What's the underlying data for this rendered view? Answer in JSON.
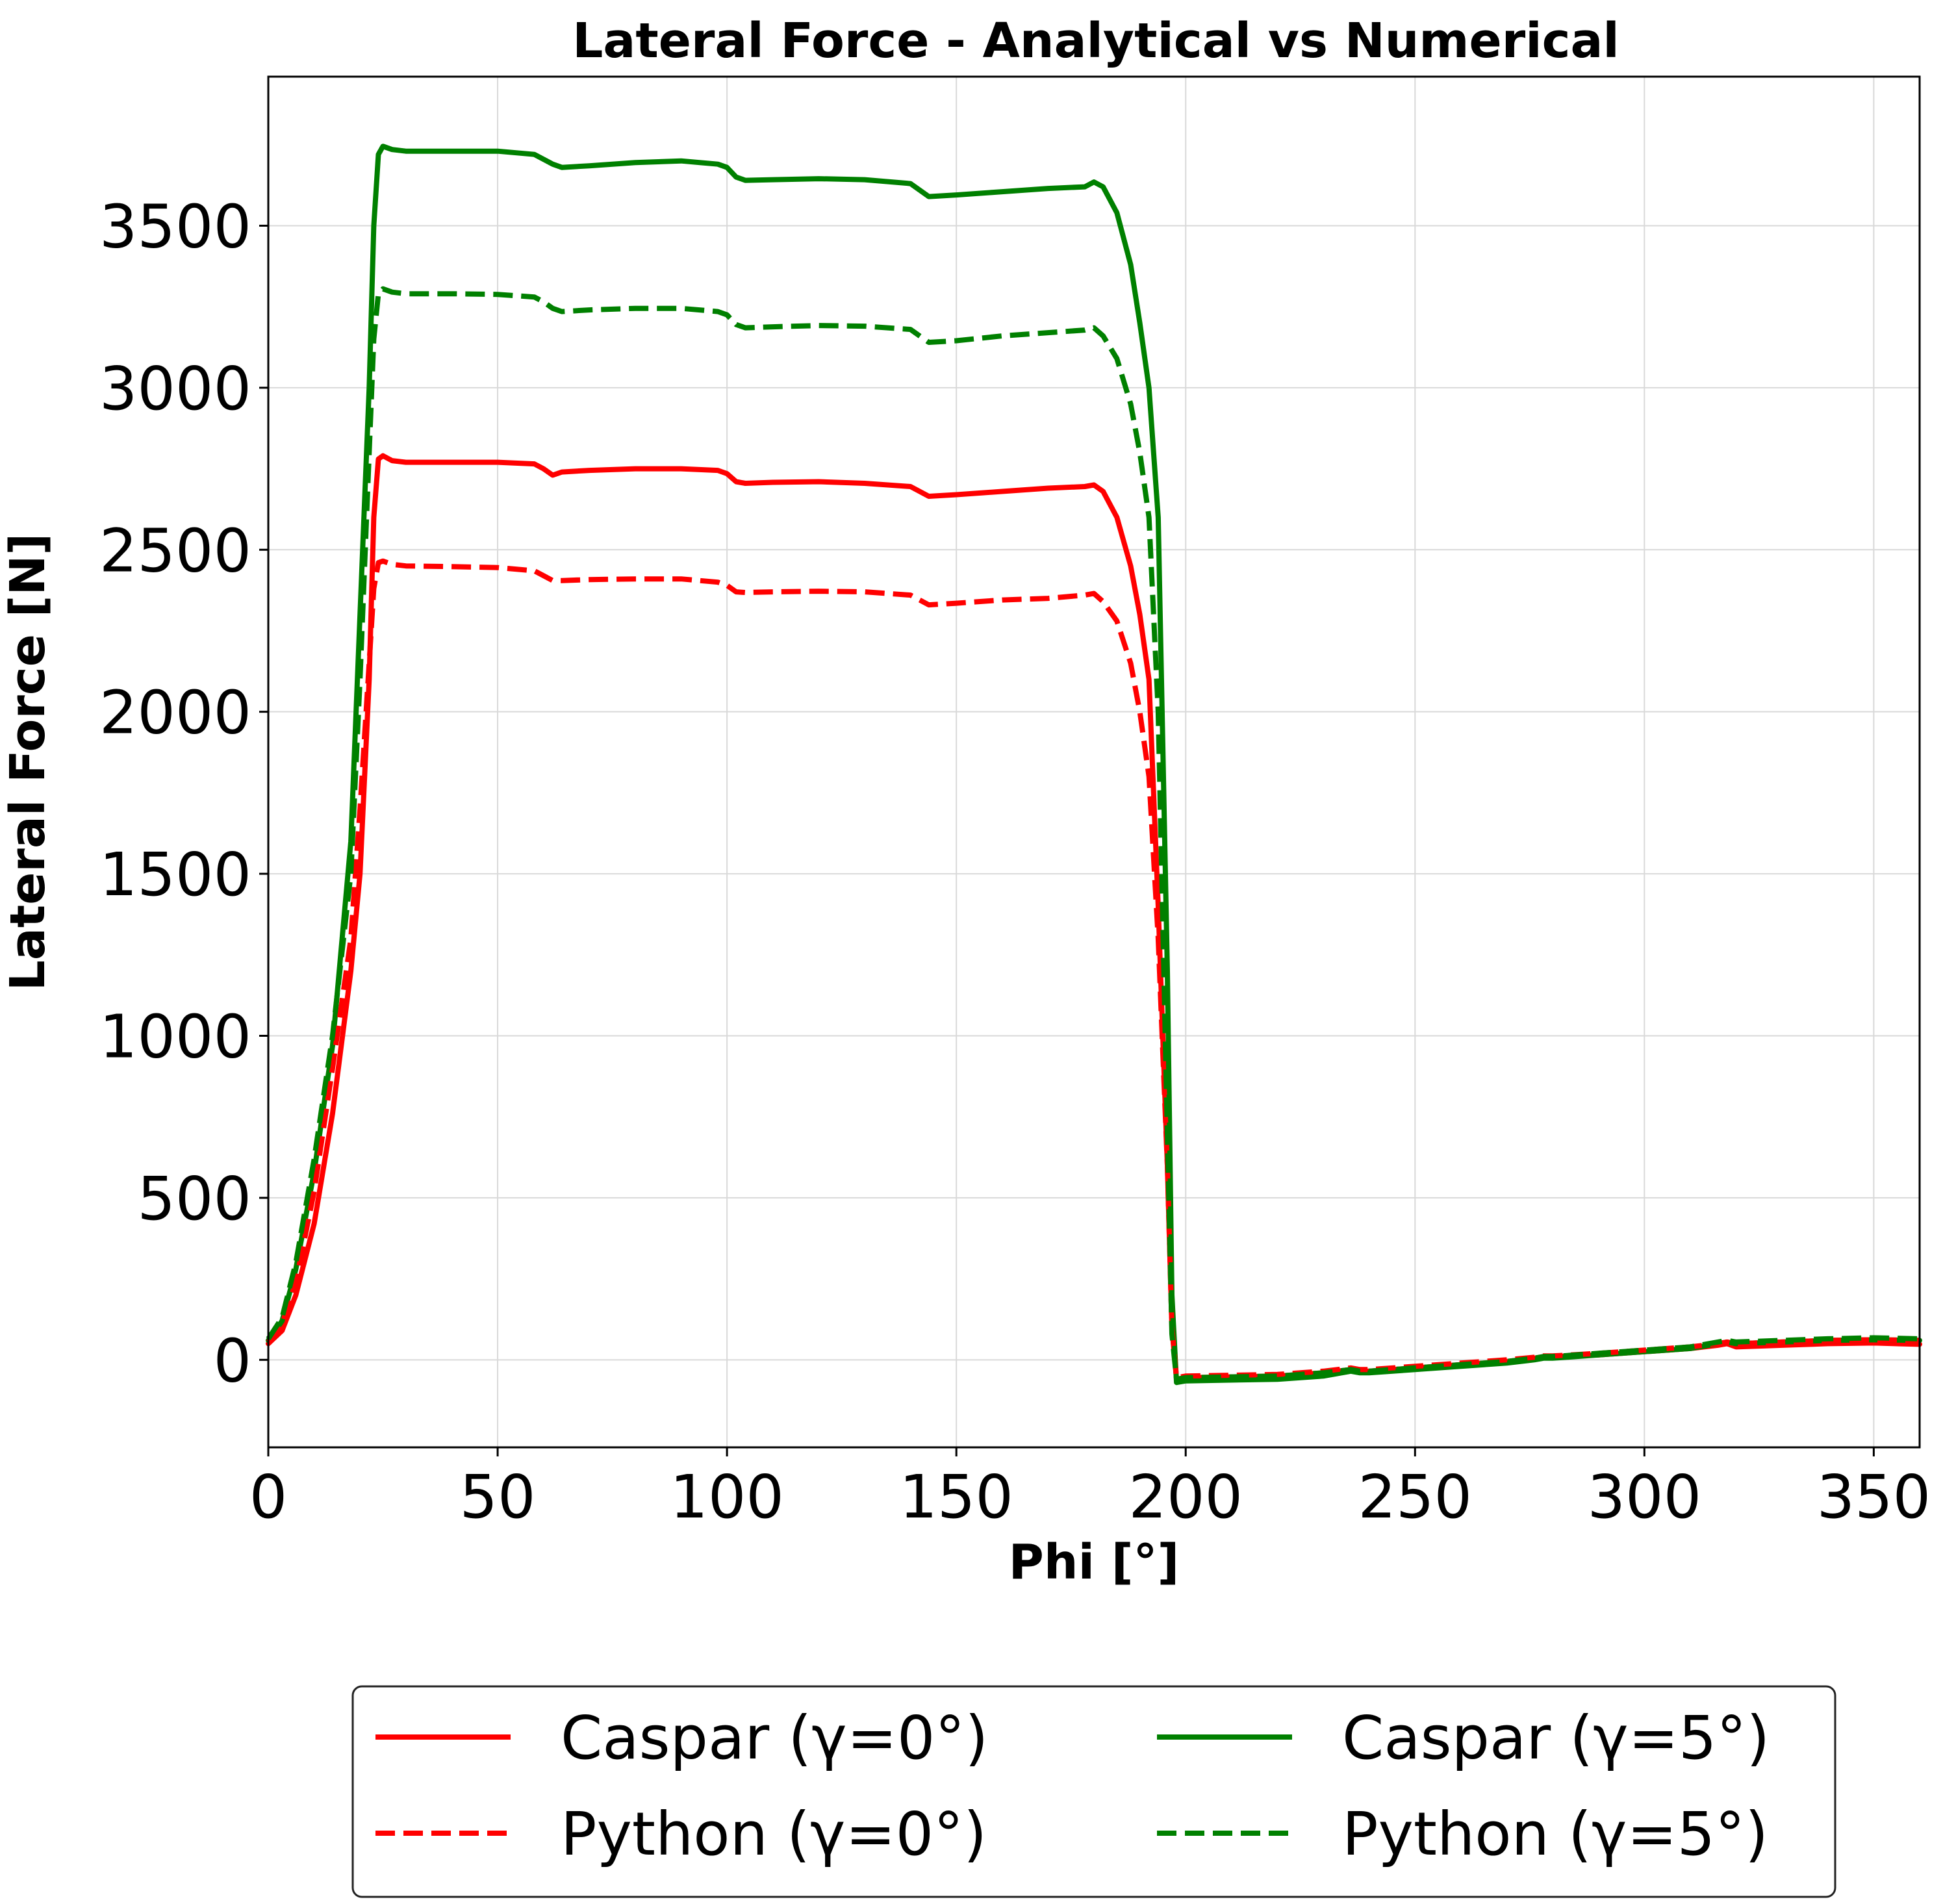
{
  "chart_data": {
    "type": "line",
    "title": "Lateral Force - Analytical vs Numerical",
    "xlabel": "Phi [°]",
    "ylabel": "Lateral Force [N]",
    "xlim": [
      0,
      360
    ],
    "ylim": [
      -270,
      3960
    ],
    "xticks": [
      0,
      50,
      100,
      150,
      200,
      250,
      300,
      350
    ],
    "yticks": [
      0,
      500,
      1000,
      1500,
      2000,
      2500,
      3000,
      3500
    ],
    "grid": true,
    "legend": {
      "placement": "below-plot",
      "columns": 2
    },
    "series": [
      {
        "name": "Caspar (γ=0°)",
        "color": "#ff0000",
        "dash": "solid",
        "x": [
          0,
          3,
          6,
          10,
          14,
          18,
          20,
          22,
          23,
          24,
          25,
          27,
          30,
          40,
          50,
          58,
          60,
          62,
          64,
          70,
          80,
          90,
          98,
          100,
          102,
          104,
          110,
          120,
          130,
          140,
          142,
          144,
          150,
          160,
          170,
          178,
          180,
          182,
          185,
          188,
          190,
          192,
          194,
          196,
          197,
          198,
          200,
          220,
          230,
          236,
          238,
          240,
          250,
          260,
          270,
          276,
          278,
          280,
          290,
          300,
          310,
          316,
          318,
          320,
          330,
          340,
          350,
          360
        ],
        "y": [
          50,
          90,
          200,
          420,
          760,
          1200,
          1500,
          2100,
          2600,
          2780,
          2790,
          2775,
          2770,
          2770,
          2770,
          2765,
          2750,
          2730,
          2740,
          2745,
          2750,
          2750,
          2745,
          2735,
          2710,
          2705,
          2708,
          2710,
          2705,
          2695,
          2680,
          2665,
          2670,
          2680,
          2690,
          2695,
          2700,
          2680,
          2600,
          2450,
          2300,
          2100,
          1400,
          600,
          100,
          -60,
          -55,
          -50,
          -40,
          -30,
          -35,
          -35,
          -25,
          -15,
          -5,
          5,
          10,
          10,
          15,
          25,
          35,
          45,
          50,
          40,
          45,
          50,
          52,
          48
        ]
      },
      {
        "name": "Python (γ=0°)",
        "color": "#ff0000",
        "dash": "dashed",
        "x": [
          0,
          3,
          6,
          10,
          14,
          18,
          20,
          22,
          23,
          24,
          25,
          27,
          30,
          40,
          50,
          58,
          60,
          62,
          64,
          70,
          80,
          90,
          98,
          100,
          102,
          104,
          110,
          120,
          130,
          140,
          142,
          144,
          150,
          160,
          170,
          178,
          180,
          182,
          185,
          188,
          190,
          192,
          194,
          196,
          197,
          198,
          200,
          220,
          230,
          236,
          238,
          240,
          250,
          260,
          270,
          276,
          278,
          280,
          290,
          300,
          310,
          316,
          318,
          320,
          330,
          340,
          350,
          360
        ],
        "y": [
          55,
          110,
          240,
          520,
          900,
          1300,
          1700,
          2150,
          2380,
          2460,
          2465,
          2455,
          2450,
          2448,
          2445,
          2435,
          2420,
          2405,
          2405,
          2408,
          2410,
          2410,
          2400,
          2390,
          2370,
          2368,
          2370,
          2372,
          2370,
          2360,
          2345,
          2330,
          2335,
          2345,
          2350,
          2360,
          2365,
          2340,
          2280,
          2150,
          2000,
          1800,
          1300,
          600,
          100,
          -55,
          -50,
          -45,
          -35,
          -25,
          -30,
          -30,
          -20,
          -10,
          0,
          8,
          12,
          12,
          20,
          30,
          40,
          50,
          55,
          50,
          55,
          60,
          62,
          60
        ]
      },
      {
        "name": "Caspar (γ=5°)",
        "color": "#008000",
        "dash": "solid",
        "x": [
          0,
          3,
          6,
          10,
          14,
          18,
          20,
          22,
          23,
          24,
          25,
          27,
          30,
          40,
          50,
          58,
          60,
          62,
          64,
          70,
          80,
          90,
          98,
          100,
          102,
          104,
          110,
          120,
          130,
          140,
          142,
          144,
          150,
          160,
          170,
          178,
          180,
          182,
          185,
          188,
          190,
          192,
          194,
          196,
          197,
          198,
          200,
          220,
          230,
          236,
          238,
          240,
          250,
          260,
          270,
          276,
          278,
          280,
          290,
          300,
          310,
          316,
          318,
          320,
          330,
          340,
          350,
          360
        ],
        "y": [
          60,
          120,
          280,
          580,
          970,
          1600,
          2300,
          3000,
          3500,
          3720,
          3745,
          3735,
          3730,
          3730,
          3730,
          3720,
          3705,
          3690,
          3680,
          3685,
          3695,
          3700,
          3690,
          3680,
          3650,
          3640,
          3642,
          3645,
          3642,
          3630,
          3610,
          3590,
          3595,
          3605,
          3615,
          3620,
          3635,
          3620,
          3540,
          3380,
          3200,
          3000,
          2600,
          1200,
          200,
          -70,
          -65,
          -60,
          -50,
          -35,
          -40,
          -40,
          -30,
          -20,
          -10,
          0,
          5,
          5,
          15,
          25,
          35,
          50,
          55,
          50,
          55,
          60,
          62,
          60
        ]
      },
      {
        "name": "Python (γ=5°)",
        "color": "#008000",
        "dash": "dashed",
        "x": [
          0,
          3,
          6,
          10,
          14,
          18,
          20,
          22,
          23,
          24,
          25,
          27,
          30,
          40,
          50,
          58,
          60,
          62,
          64,
          70,
          80,
          90,
          98,
          100,
          102,
          104,
          110,
          120,
          130,
          140,
          142,
          144,
          150,
          160,
          170,
          178,
          180,
          182,
          185,
          188,
          190,
          192,
          194,
          196,
          197,
          198,
          200,
          220,
          230,
          236,
          238,
          240,
          250,
          260,
          270,
          276,
          278,
          280,
          290,
          300,
          310,
          316,
          318,
          320,
          330,
          340,
          350,
          360
        ],
        "y": [
          65,
          130,
          300,
          620,
          1000,
          1500,
          2100,
          2800,
          3150,
          3290,
          3305,
          3295,
          3290,
          3290,
          3288,
          3280,
          3265,
          3245,
          3235,
          3240,
          3245,
          3245,
          3235,
          3225,
          3195,
          3185,
          3188,
          3192,
          3190,
          3180,
          3160,
          3140,
          3145,
          3160,
          3170,
          3178,
          3185,
          3160,
          3090,
          2950,
          2800,
          2600,
          2000,
          700,
          80,
          -60,
          -55,
          -50,
          -40,
          -30,
          -35,
          -35,
          -25,
          -15,
          -5,
          5,
          10,
          10,
          20,
          30,
          40,
          55,
          60,
          55,
          60,
          65,
          68,
          65
        ]
      }
    ]
  }
}
